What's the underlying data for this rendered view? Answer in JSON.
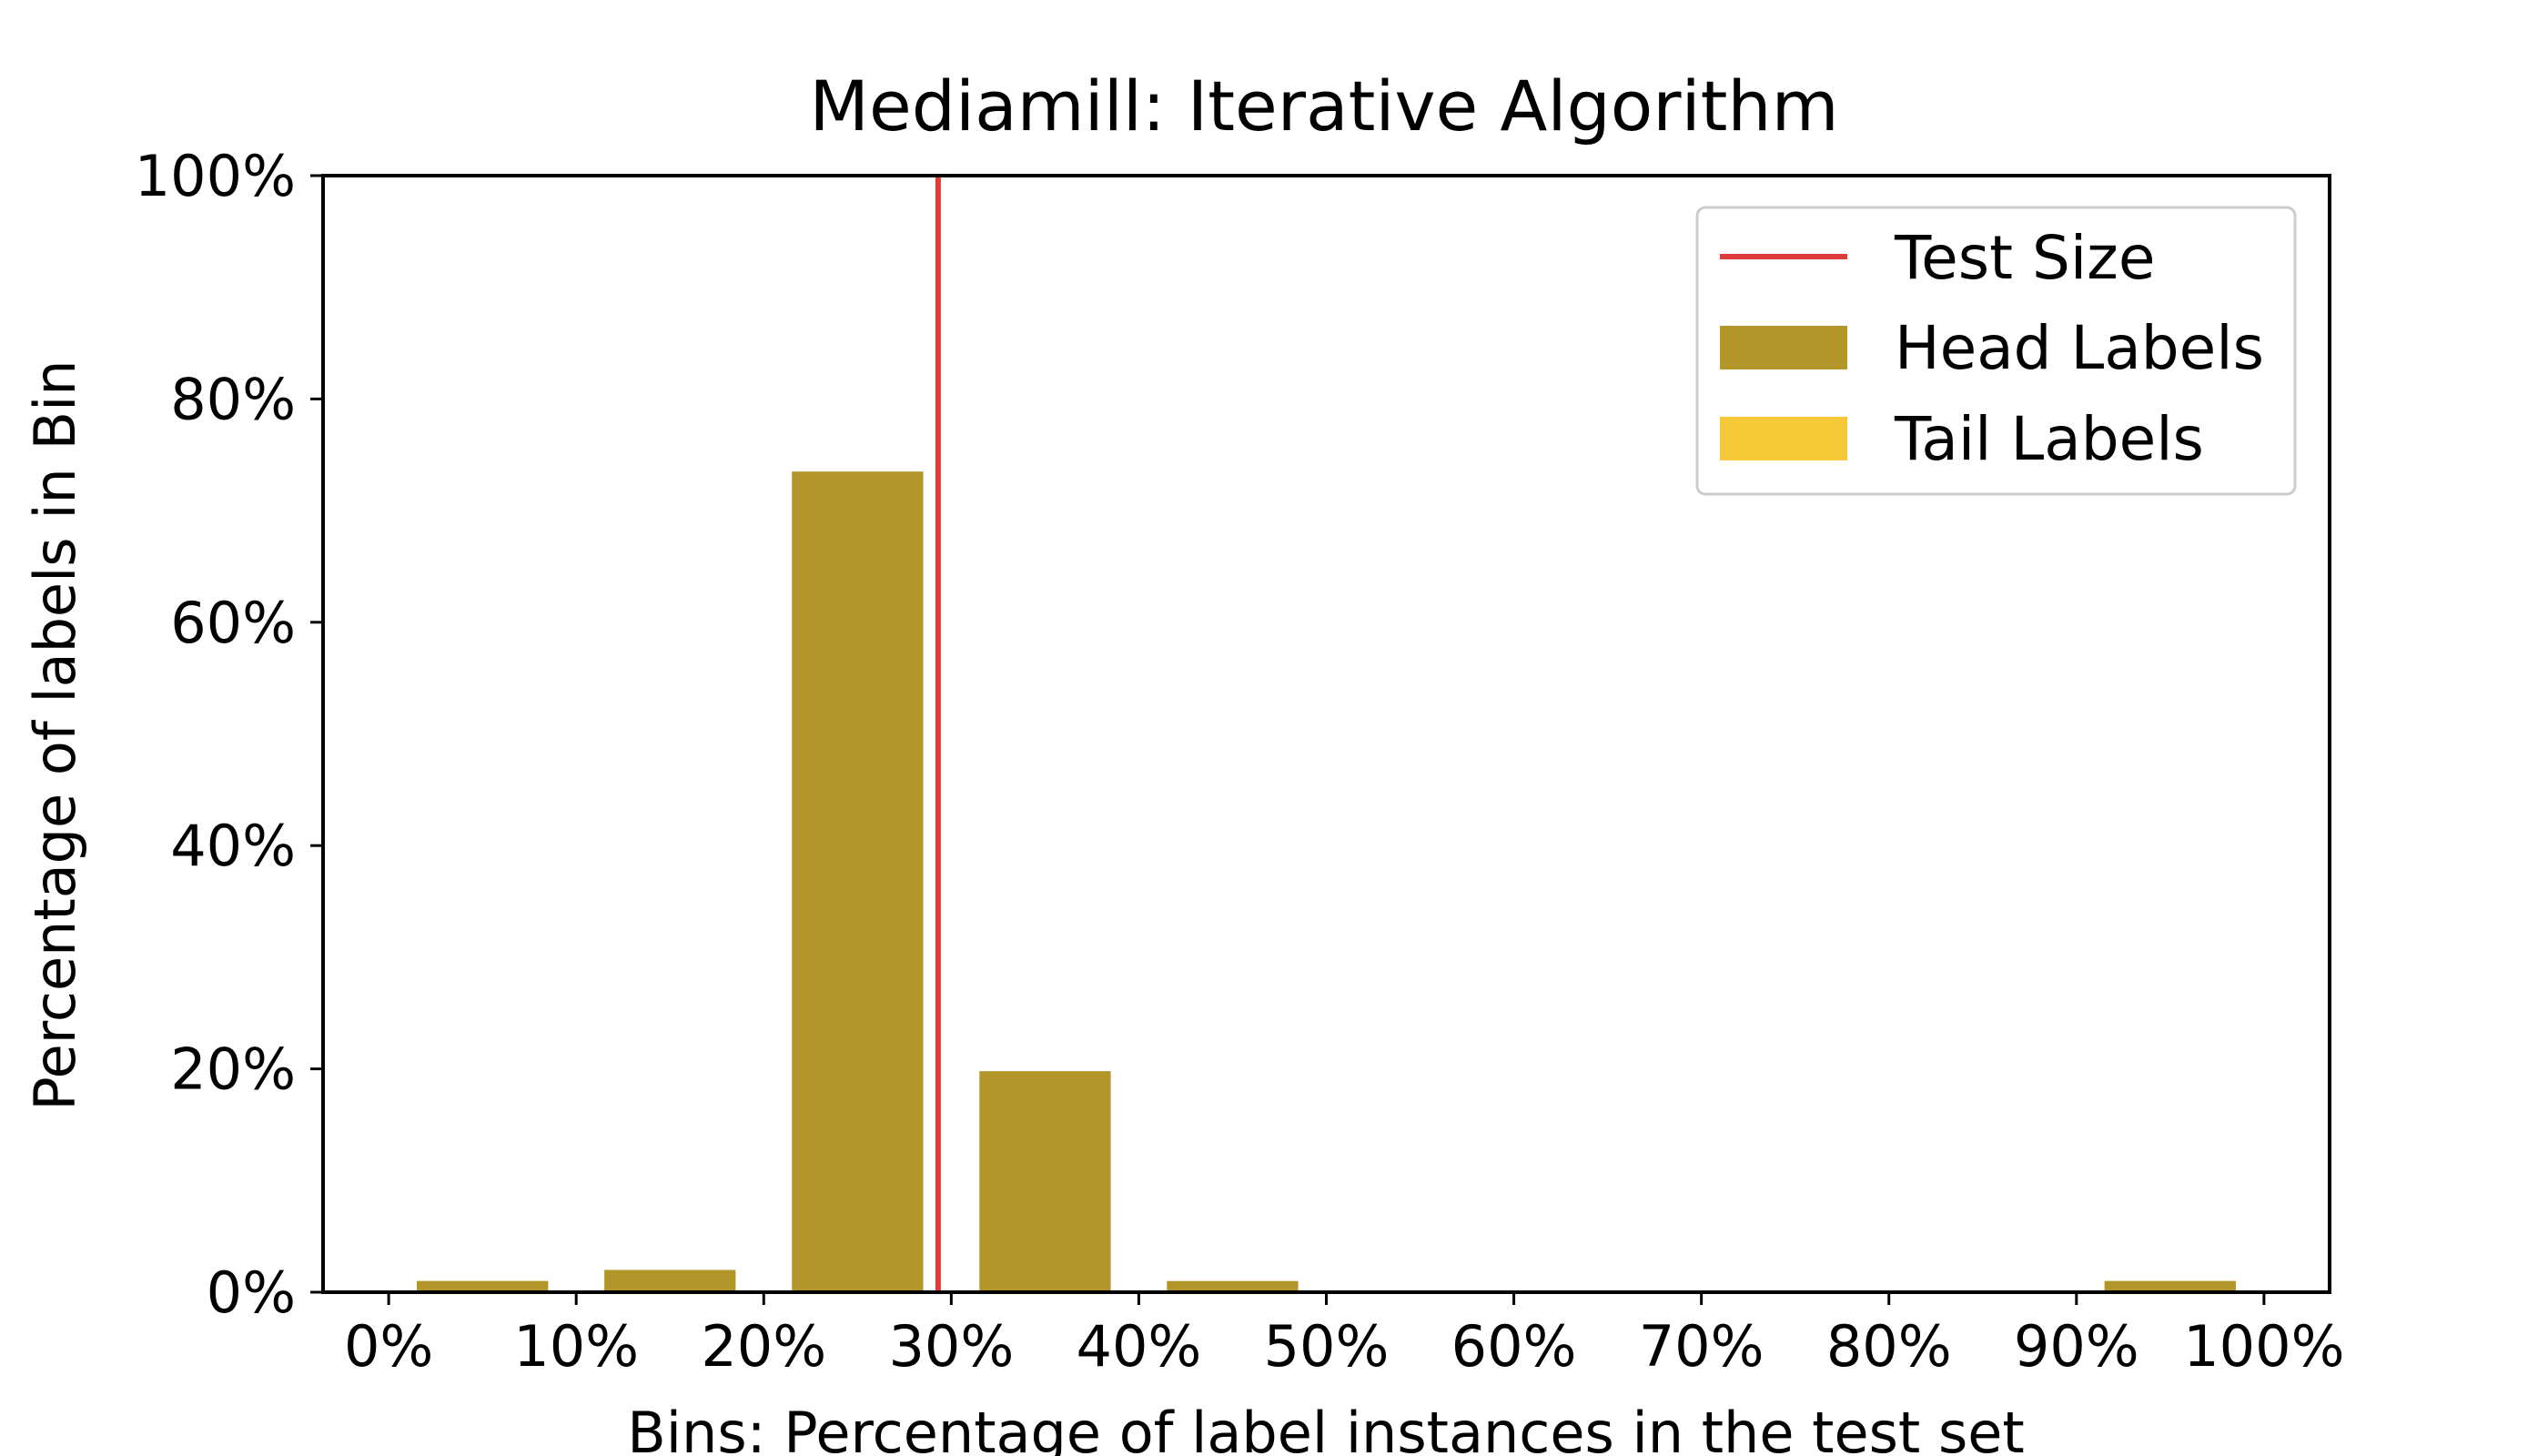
{
  "chart_data": {
    "type": "bar",
    "title": "Mediamill: Iterative Algorithm",
    "xlabel": "Bins: Percentage of label instances in the test set",
    "ylabel": "Percentage of labels in Bin",
    "x_ticks": [
      "0%",
      "10%",
      "20%",
      "30%",
      "40%",
      "50%",
      "60%",
      "70%",
      "80%",
      "90%",
      "100%"
    ],
    "y_ticks": [
      "0%",
      "20%",
      "40%",
      "60%",
      "80%",
      "100%"
    ],
    "xlim": [
      -3.5,
      103.5
    ],
    "ylim": [
      0,
      100
    ],
    "bin_width": 7,
    "series": [
      {
        "name": "Head Labels",
        "color": "#b39629",
        "bins": [
          5,
          15,
          25,
          35,
          45,
          55,
          65,
          75,
          85,
          95
        ],
        "values": [
          1.0,
          2.0,
          73.5,
          19.8,
          1.0,
          0,
          0,
          0,
          0,
          1.0
        ]
      },
      {
        "name": "Tail Labels",
        "color": "#f5c937",
        "bins": [
          5,
          15,
          25,
          35,
          45,
          55,
          65,
          75,
          85,
          95
        ],
        "values": [
          1.0,
          0,
          0,
          0,
          0,
          0,
          0,
          0,
          0,
          1.0
        ]
      }
    ],
    "reference_line": {
      "name": "Test Size",
      "x": 29.3,
      "color": "#e03b3b"
    },
    "legend_position": "top-right",
    "grid": false
  }
}
